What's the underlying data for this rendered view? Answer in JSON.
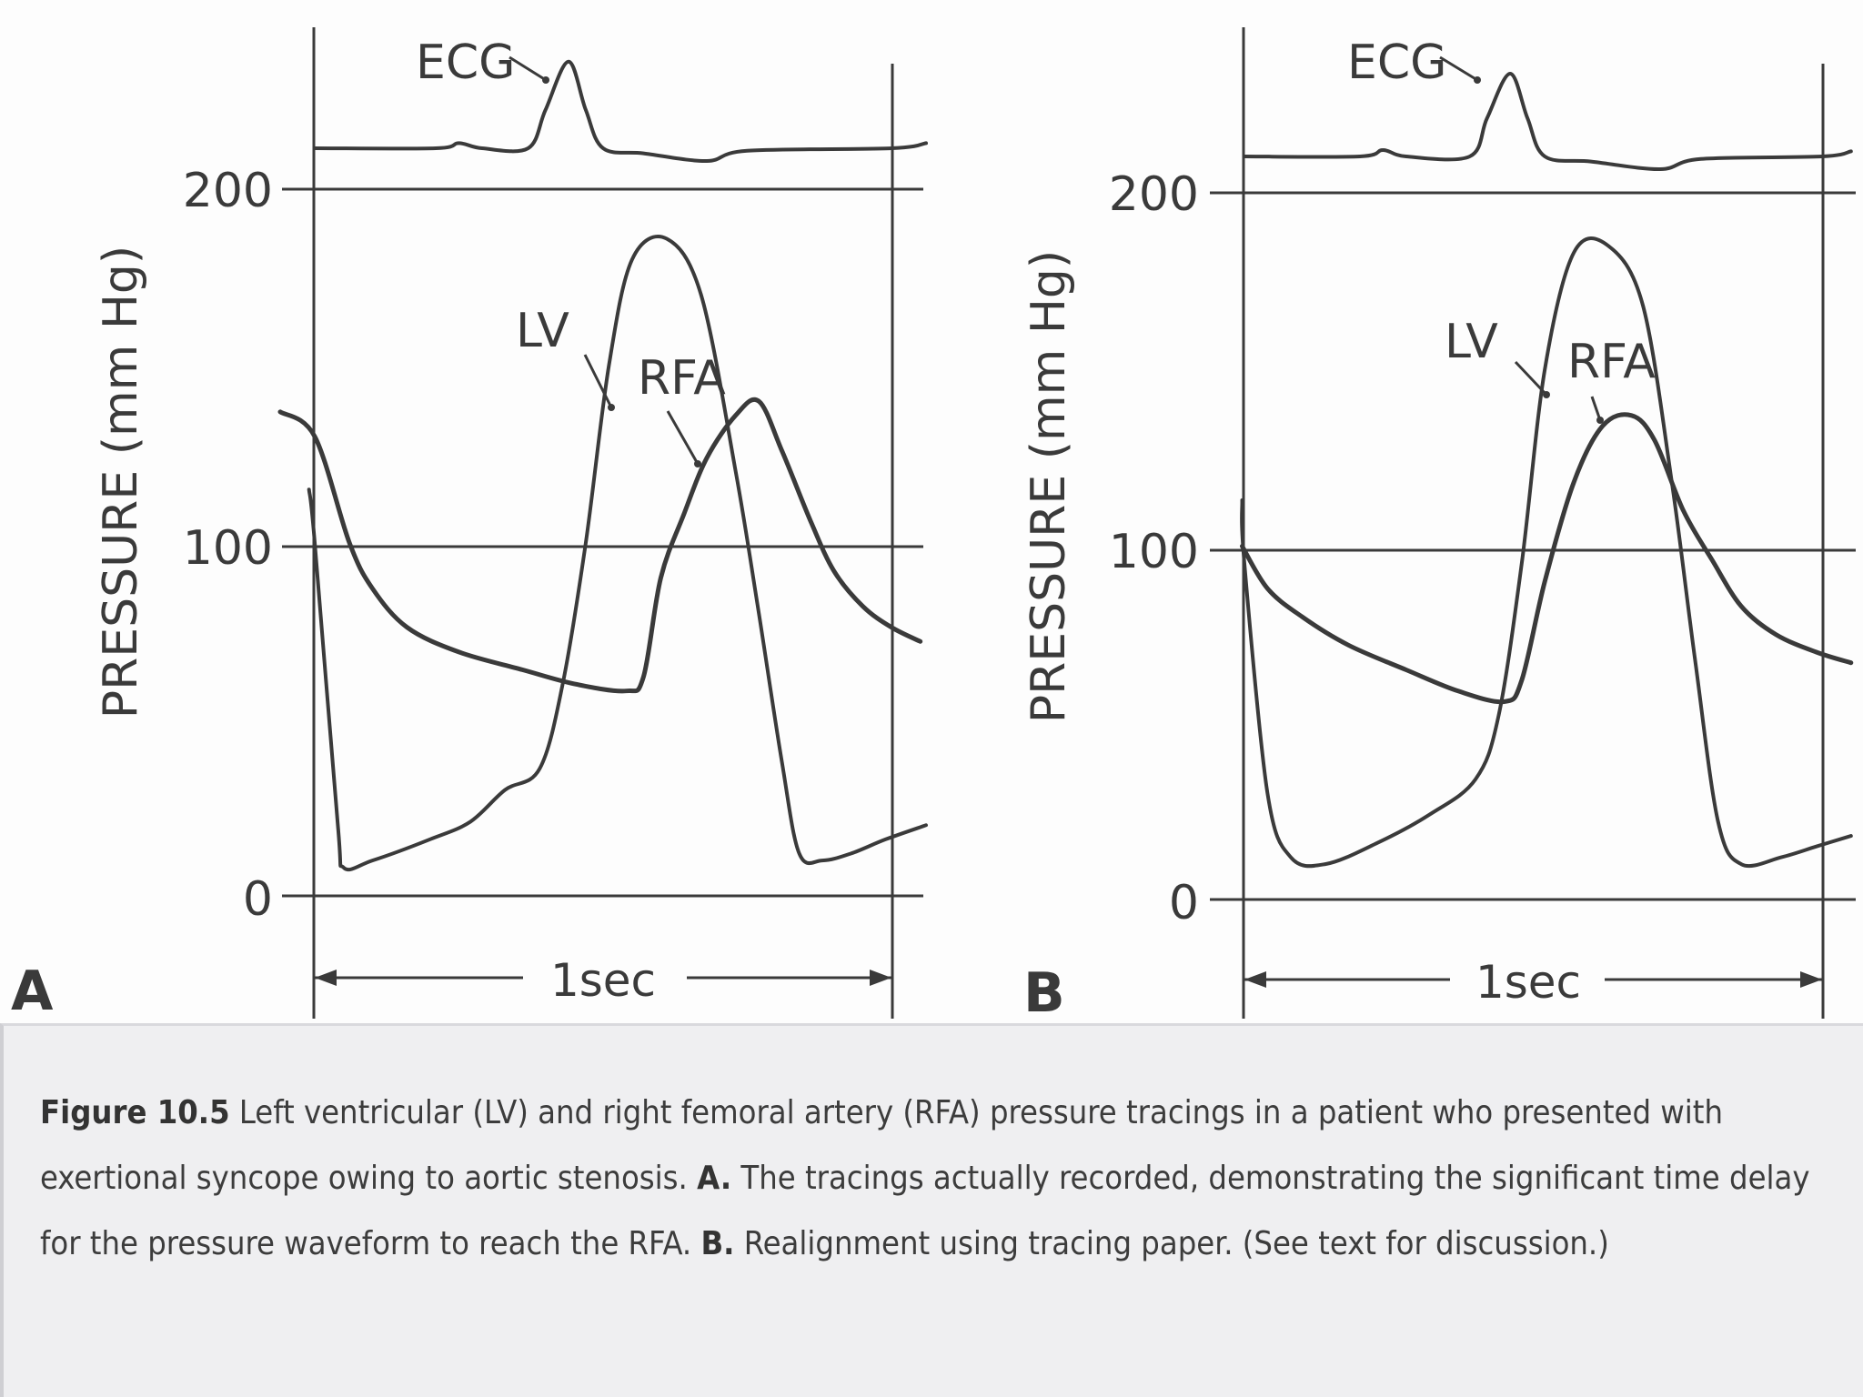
{
  "chart_data": [
    {
      "panel": "A",
      "type": "line",
      "ylabel": "PRESSURE (mm Hg)",
      "ylim": [
        0,
        200
      ],
      "yticks": [
        0,
        100,
        200
      ],
      "time_label": "1sec",
      "grid": true,
      "series": [
        {
          "name": "ECG",
          "values": [
            [
              0.0,
              0.0
            ],
            [
              0.21,
              0.0
            ],
            [
              0.25,
              0.4
            ],
            [
              0.29,
              0.0
            ],
            [
              0.37,
              0.0
            ],
            [
              0.4,
              3.0
            ],
            [
              0.44,
              6.8
            ],
            [
              0.47,
              3.0
            ],
            [
              0.5,
              0.0
            ],
            [
              0.57,
              -0.4
            ],
            [
              0.68,
              -1.0
            ],
            [
              0.75,
              -0.2
            ],
            [
              1.0,
              0.0
            ],
            [
              1.06,
              0.4
            ]
          ]
        },
        {
          "name": "LV",
          "values": [
            [
              -0.01,
              115
            ],
            [
              0.0,
              100
            ],
            [
              0.04,
              20
            ],
            [
              0.05,
              8
            ],
            [
              0.1,
              10
            ],
            [
              0.2,
              16
            ],
            [
              0.27,
              21
            ],
            [
              0.33,
              30
            ],
            [
              0.39,
              36
            ],
            [
              0.43,
              60
            ],
            [
              0.47,
              100
            ],
            [
              0.51,
              150
            ],
            [
              0.55,
              180
            ],
            [
              0.61,
              186
            ],
            [
              0.67,
              170
            ],
            [
              0.73,
              120
            ],
            [
              0.77,
              80
            ],
            [
              0.81,
              38
            ],
            [
              0.84,
              12
            ],
            [
              0.88,
              10
            ],
            [
              0.93,
              12
            ],
            [
              0.99,
              16
            ],
            [
              1.06,
              20
            ]
          ]
        },
        {
          "name": "RFA",
          "values": [
            [
              -0.06,
              137
            ],
            [
              0.0,
              130
            ],
            [
              0.06,
              100
            ],
            [
              0.1,
              87
            ],
            [
              0.16,
              76
            ],
            [
              0.25,
              69
            ],
            [
              0.36,
              64
            ],
            [
              0.45,
              60
            ],
            [
              0.54,
              58
            ],
            [
              0.57,
              62
            ],
            [
              0.6,
              90
            ],
            [
              0.64,
              108
            ],
            [
              0.68,
              124
            ],
            [
              0.73,
              136
            ],
            [
              0.77,
              140
            ],
            [
              0.81,
              126
            ],
            [
              0.86,
              106
            ],
            [
              0.9,
              92
            ],
            [
              0.95,
              82
            ],
            [
              1.0,
              76
            ],
            [
              1.05,
              72
            ]
          ]
        }
      ]
    },
    {
      "panel": "B",
      "type": "line",
      "ylabel": "PRESSURE (mm Hg)",
      "ylim": [
        0,
        200
      ],
      "yticks": [
        0,
        100,
        200
      ],
      "time_label": "1sec",
      "grid": true,
      "series": [
        {
          "name": "ECG",
          "values": [
            [
              0.0,
              0.0
            ],
            [
              0.2,
              0.0
            ],
            [
              0.24,
              0.5
            ],
            [
              0.28,
              0.0
            ],
            [
              0.39,
              0.0
            ],
            [
              0.42,
              3.0
            ],
            [
              0.46,
              6.5
            ],
            [
              0.49,
              3.0
            ],
            [
              0.52,
              0.0
            ],
            [
              0.6,
              -0.4
            ],
            [
              0.72,
              -1.0
            ],
            [
              0.79,
              -0.2
            ],
            [
              1.0,
              0.0
            ],
            [
              1.05,
              0.4
            ]
          ]
        },
        {
          "name": "LV",
          "values": [
            [
              -0.004,
              113
            ],
            [
              0.0,
              95
            ],
            [
              0.04,
              30
            ],
            [
              0.08,
              12
            ],
            [
              0.14,
              10
            ],
            [
              0.23,
              16
            ],
            [
              0.32,
              24
            ],
            [
              0.4,
              34
            ],
            [
              0.44,
              52
            ],
            [
              0.48,
              95
            ],
            [
              0.52,
              150
            ],
            [
              0.57,
              183
            ],
            [
              0.63,
              185
            ],
            [
              0.69,
              168
            ],
            [
              0.74,
              118
            ],
            [
              0.78,
              68
            ],
            [
              0.82,
              22
            ],
            [
              0.86,
              10
            ],
            [
              0.93,
              12
            ],
            [
              0.99,
              15
            ],
            [
              1.05,
              18
            ]
          ]
        },
        {
          "name": "RFA",
          "values": [
            [
              -0.004,
              100
            ],
            [
              0.04,
              88
            ],
            [
              0.1,
              80
            ],
            [
              0.18,
              72
            ],
            [
              0.28,
              65
            ],
            [
              0.37,
              59
            ],
            [
              0.45,
              56
            ],
            [
              0.48,
              62
            ],
            [
              0.52,
              90
            ],
            [
              0.57,
              118
            ],
            [
              0.62,
              134
            ],
            [
              0.67,
              137
            ],
            [
              0.71,
              130
            ],
            [
              0.76,
              110
            ],
            [
              0.81,
              96
            ],
            [
              0.86,
              83
            ],
            [
              0.92,
              75
            ],
            [
              0.99,
              70
            ],
            [
              1.05,
              67
            ]
          ]
        }
      ]
    }
  ],
  "panel_a": {
    "letter": "A",
    "ylabel": "PRESSURE (mm Hg)",
    "ticks": [
      "200",
      "100",
      "0"
    ],
    "labels": {
      "ecg": "ECG",
      "lv": "LV",
      "rfa": "RFA"
    },
    "time_label": "1sec"
  },
  "panel_b": {
    "letter": "B",
    "ylabel": "PRESSURE (mm Hg)",
    "ticks": [
      "200",
      "100",
      "0"
    ],
    "labels": {
      "ecg": "ECG",
      "lv": "LV",
      "rfa": "RFA"
    },
    "time_label": "1sec"
  },
  "caption": {
    "figure_label": "Figure 10.5",
    "intro": " Left ventricular (LV) and right femoral artery (RFA) pressure tracings in a patient who presented with exertional syncope owing to aortic stenosis. ",
    "a_label": "A.",
    "a_text": " The tracings actually recorded, demonstrating the significant time delay for the pressure waveform to reach the RFA. ",
    "b_label": "B.",
    "b_text": " Realignment using tracing paper. (See text for discussion.)"
  }
}
